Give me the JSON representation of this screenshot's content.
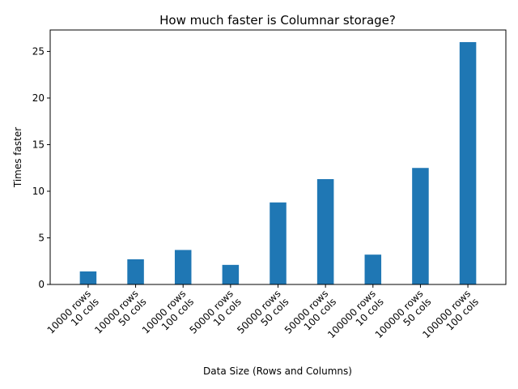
{
  "chart_data": {
    "type": "bar",
    "title": "How much faster is Columnar storage?",
    "xlabel": "Data Size (Rows and Columns)",
    "ylabel": "Times faster",
    "categories": [
      [
        "10000 rows",
        "10 cols"
      ],
      [
        "10000 rows",
        "50 cols"
      ],
      [
        "10000 rows",
        "100 cols"
      ],
      [
        "50000 rows",
        "10 cols"
      ],
      [
        "50000 rows",
        "50 cols"
      ],
      [
        "50000 rows",
        "100 cols"
      ],
      [
        "100000 rows",
        "10 cols"
      ],
      [
        "100000 rows",
        "50 cols"
      ],
      [
        "100000 rows",
        "100 cols"
      ]
    ],
    "values": [
      1.4,
      2.7,
      3.7,
      2.1,
      8.8,
      11.3,
      3.2,
      12.5,
      26.0
    ],
    "ylim": [
      0,
      27.3
    ],
    "yticks": [
      0,
      5,
      10,
      15,
      20,
      25
    ],
    "grid": false,
    "colors": {
      "bar": "#1f77b4",
      "axis": "#000000"
    }
  }
}
